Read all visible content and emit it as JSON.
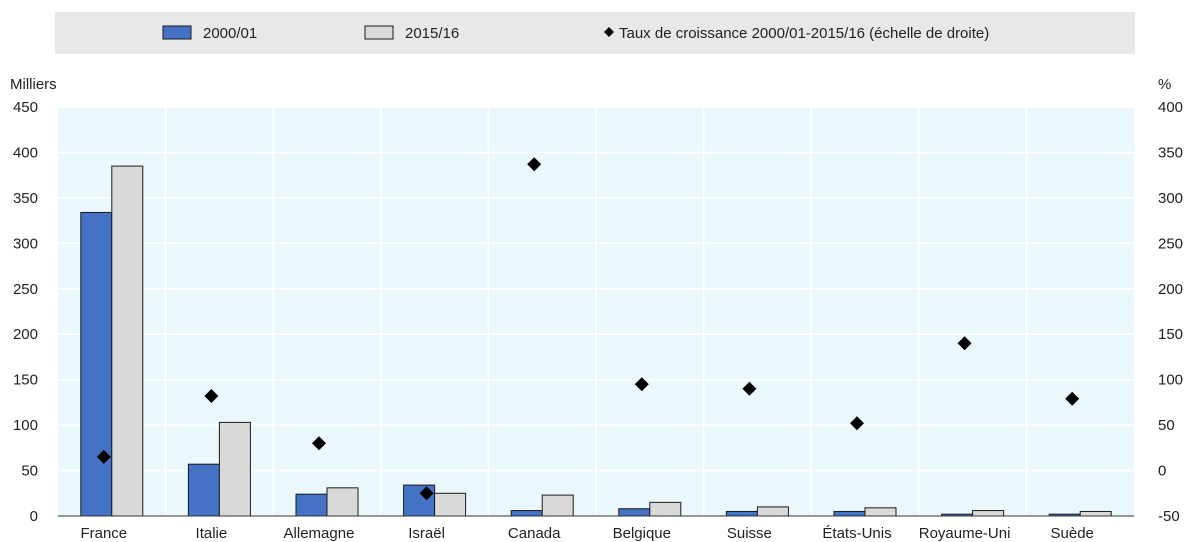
{
  "chart_data": {
    "type": "bar",
    "categories": [
      "France",
      "Italie",
      "Allemagne",
      "Israël",
      "Canada",
      "Belgique",
      "Suisse",
      "États-Unis",
      "Royaume-Uni",
      "Suède"
    ],
    "series": [
      {
        "name": "2000/01",
        "axis": "left",
        "kind": "bar",
        "color": "#4472c4",
        "values": [
          334,
          57,
          24,
          34,
          6,
          8,
          5,
          5,
          2,
          2
        ]
      },
      {
        "name": "2015/16",
        "axis": "left",
        "kind": "bar",
        "color": "#d9d9d9",
        "values": [
          385,
          103,
          31,
          25,
          23,
          15,
          10,
          9,
          6,
          5
        ]
      },
      {
        "name": "Taux de croissance 2000/01-2015/16 (échelle de droite)",
        "axis": "right",
        "kind": "scatter",
        "color": "#000000",
        "marker": "diamond",
        "values": [
          15,
          82,
          30,
          -25,
          337,
          95,
          90,
          52,
          140,
          79
        ]
      }
    ],
    "y_left": {
      "label": "Milliers",
      "min": 0,
      "max": 450,
      "ticks": [
        0,
        50,
        100,
        150,
        200,
        250,
        300,
        350,
        400,
        450
      ]
    },
    "y_right": {
      "label": "%",
      "min": -50,
      "max": 400,
      "ticks": [
        -50,
        0,
        50,
        100,
        150,
        200,
        250,
        300,
        350,
        400
      ]
    },
    "legend_position": "top",
    "grid": true,
    "plot_background": "#eaf8fb"
  }
}
